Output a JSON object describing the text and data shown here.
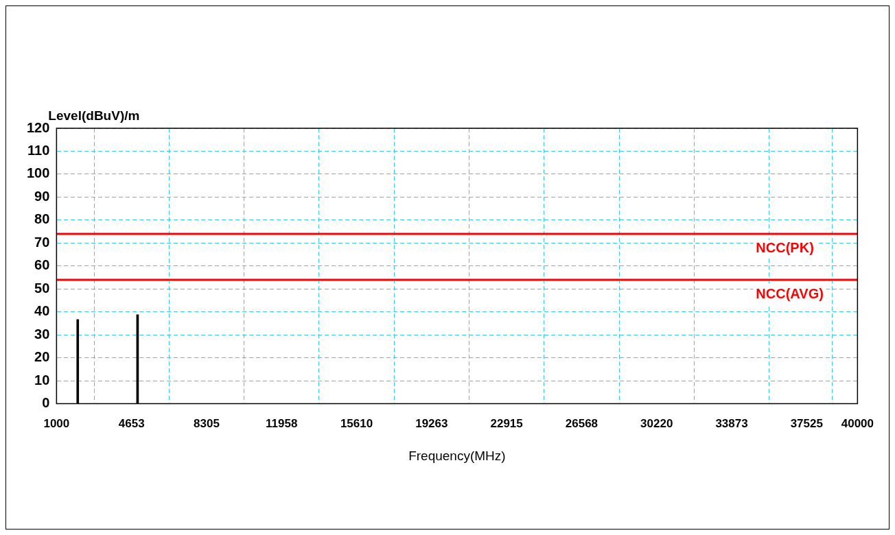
{
  "chart_data": {
    "type": "bar",
    "xlabel": "Frequency(MHz)",
    "ylabel": "Level(dBuV)/m",
    "x": [
      2032,
      4945
    ],
    "series": [
      {
        "color": "#000000",
        "values": [
          36.7,
          38.8
        ]
      }
    ],
    "xlim": [
      1000,
      40000
    ],
    "xticks": [
      1000,
      4653,
      8305,
      11958,
      15610,
      19263,
      22915,
      26568,
      30220,
      33873,
      37525,
      40000
    ],
    "ylim": [
      0,
      120
    ],
    "yticks": [
      0,
      10,
      20,
      30,
      40,
      50,
      60,
      70,
      80,
      90,
      100,
      110,
      120
    ],
    "grid": true,
    "legend": false,
    "ref_lines": [
      {
        "axis": "y",
        "value": 74,
        "label": "NCC(PK)",
        "color": "#ff0000"
      },
      {
        "axis": "y",
        "value": 54,
        "label": "NCC(AVG)",
        "color": "#ff0000"
      }
    ]
  }
}
